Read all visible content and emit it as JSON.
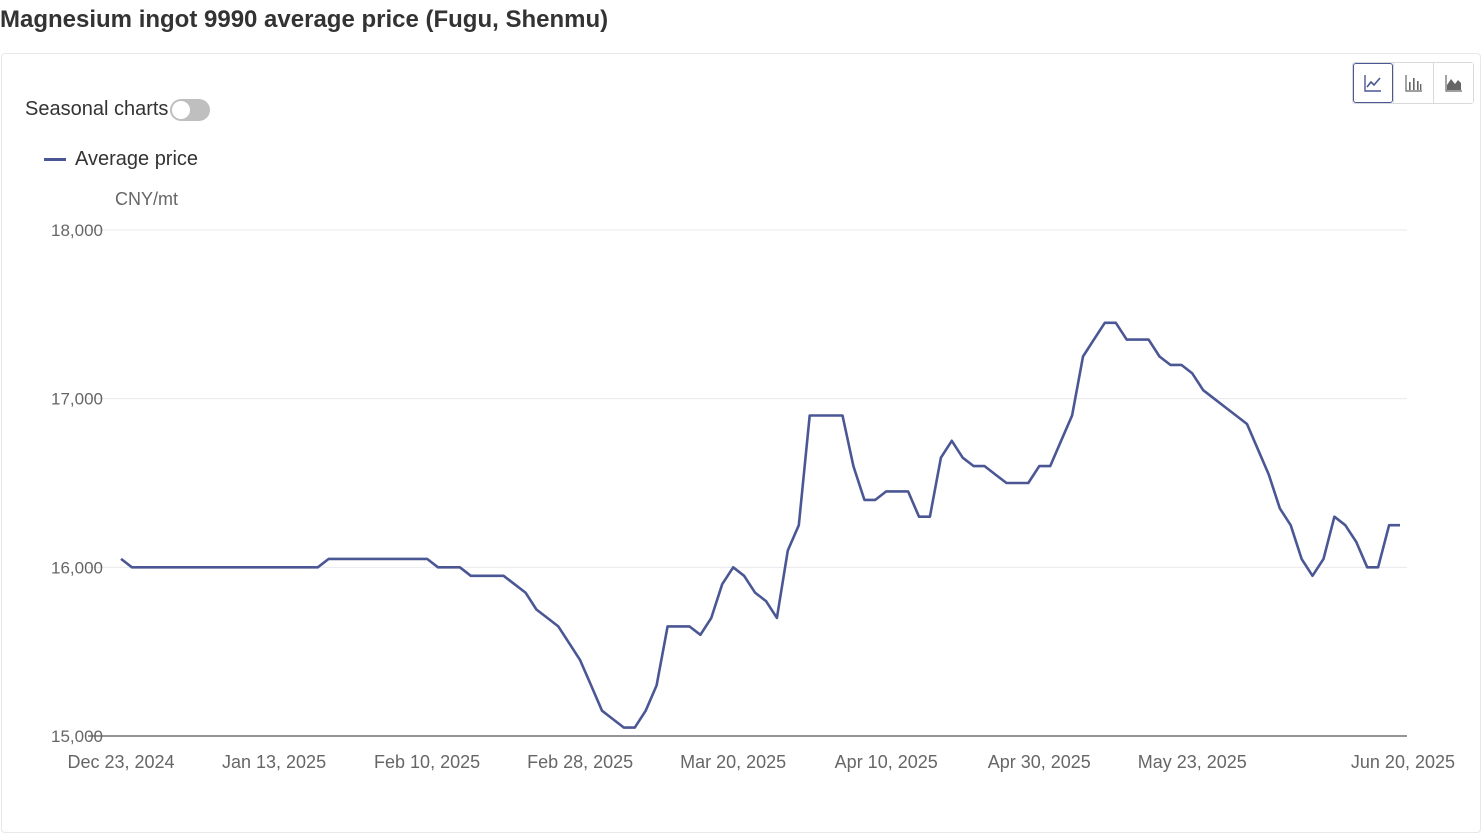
{
  "page": {
    "title": "Magnesium ingot 9990 average price (Fugu, Shenmu)"
  },
  "controls": {
    "seasonal_label": "Seasonal charts",
    "seasonal_on": false,
    "chart_types": [
      {
        "name": "line-chart-icon",
        "active": true
      },
      {
        "name": "bar-chart-icon",
        "active": false
      },
      {
        "name": "area-chart-icon",
        "active": false
      }
    ]
  },
  "colors": {
    "series": "#4a5794",
    "grid": "#e8e8ee",
    "axis": "#666666"
  },
  "chart_data": {
    "type": "line",
    "title": "Magnesium ingot 9990 average price (Fugu, Shenmu)",
    "ylabel": "CNY/mt",
    "ylim": [
      15000,
      18000
    ],
    "yticks": [
      15000,
      16000,
      17000,
      18000
    ],
    "ytick_labels": [
      "15,000",
      "16,000",
      "17,000",
      "18,000"
    ],
    "xtick_labels": [
      "Dec 23, 2024",
      "Jan 13, 2025",
      "Feb 10, 2025",
      "Feb 28, 2025",
      "Mar 20, 2025",
      "Apr 10, 2025",
      "Apr 30, 2025",
      "May 23, 2025",
      "Jun 20, 2025"
    ],
    "xtick_positions": [
      0,
      14,
      28,
      42,
      56,
      70,
      84,
      98,
      117
    ],
    "legend": "top-left",
    "grid": true,
    "series": [
      {
        "name": "Average price",
        "values": [
          16050,
          16000,
          16000,
          16000,
          16000,
          16000,
          16000,
          16000,
          16000,
          16000,
          16000,
          16000,
          16000,
          16000,
          16000,
          16000,
          16000,
          16000,
          16000,
          16050,
          16050,
          16050,
          16050,
          16050,
          16050,
          16050,
          16050,
          16050,
          16050,
          16000,
          16000,
          16000,
          15950,
          15950,
          15950,
          15950,
          15900,
          15850,
          15750,
          15700,
          15650,
          15550,
          15450,
          15300,
          15150,
          15100,
          15050,
          15050,
          15150,
          15300,
          15650,
          15650,
          15650,
          15600,
          15700,
          15900,
          16000,
          15950,
          15850,
          15800,
          15700,
          16100,
          16250,
          16900,
          16900,
          16900,
          16900,
          16600,
          16400,
          16400,
          16450,
          16450,
          16450,
          16300,
          16300,
          16650,
          16750,
          16650,
          16600,
          16600,
          16550,
          16500,
          16500,
          16500,
          16600,
          16600,
          16750,
          16900,
          17250,
          17350,
          17450,
          17450,
          17350,
          17350,
          17350,
          17250,
          17200,
          17200,
          17150,
          17050,
          17000,
          16950,
          16900,
          16850,
          16700,
          16550,
          16350,
          16250,
          16050,
          15950,
          16050,
          16300,
          16250,
          16150,
          16000,
          16000,
          16250,
          16250
        ]
      }
    ]
  }
}
